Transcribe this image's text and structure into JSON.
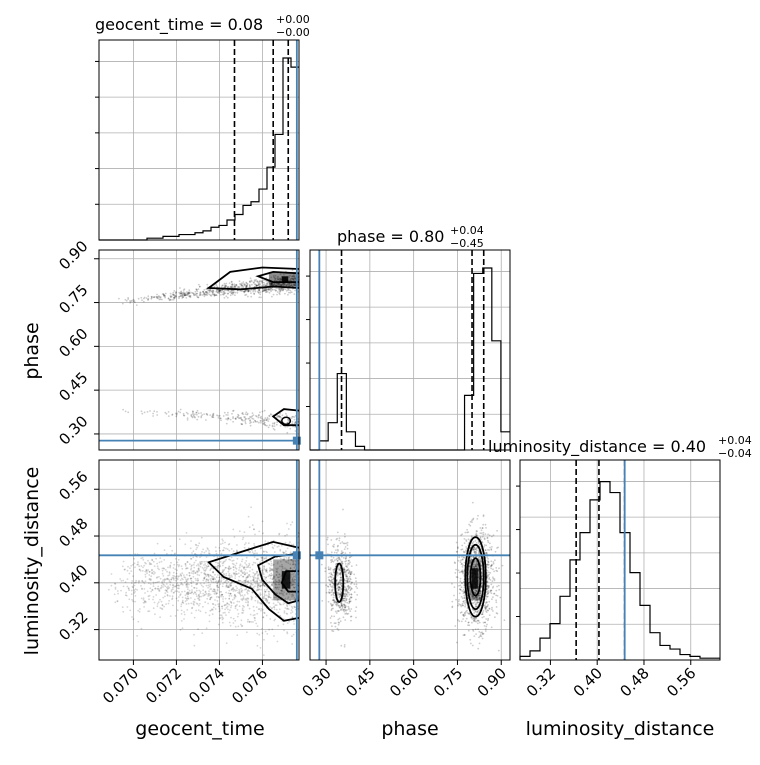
{
  "chart_data": {
    "type": "corner",
    "parameters": [
      "geocent_time",
      "phase",
      "luminosity_distance"
    ],
    "colors": {
      "truth": "#4682b4",
      "ink": "#000000",
      "grid": "#b0b0b0"
    },
    "panel_titles": [
      {
        "name": "geocent_time",
        "value": "0.08",
        "plus": "+0.00",
        "minus": "−0.00"
      },
      {
        "name": "phase",
        "value": "0.80",
        "plus": "+0.04",
        "minus": "−0.45"
      },
      {
        "name": "luminosity_distance",
        "value": "0.40",
        "plus": "+0.04",
        "minus": "−0.04"
      }
    ],
    "axes": {
      "geocent_time": {
        "range": [
          0.0684,
          0.0777
        ],
        "ticks": [
          "0.070",
          "0.072",
          "0.074",
          "0.076"
        ],
        "tick_values": [
          0.07,
          0.072,
          0.074,
          0.076
        ]
      },
      "phase": {
        "range": [
          0.245,
          0.93
        ],
        "ticks": [
          "0.30",
          "0.45",
          "0.60",
          "0.75",
          "0.90"
        ],
        "tick_values": [
          0.3,
          0.45,
          0.6,
          0.75,
          0.9
        ]
      },
      "luminosity_distance": {
        "range": [
          0.268,
          0.61
        ],
        "ticks": [
          "0.32",
          "0.40",
          "0.48",
          "0.56"
        ],
        "tick_values": [
          0.32,
          0.4,
          0.48,
          0.56
        ]
      }
    },
    "truths": {
      "geocent_time": 0.0776,
      "phase": 0.277,
      "luminosity_distance": 0.447
    },
    "quantiles": {
      "geocent_time": [
        0.0747,
        0.0765,
        0.0772
      ],
      "phase": [
        0.353,
        0.8,
        0.84
      ],
      "luminosity_distance": [
        0.364,
        0.403,
        0.447
      ]
    },
    "histograms": {
      "geocent_time": [
        0,
        0,
        0,
        0,
        0,
        0,
        0.01,
        0.01,
        0.02,
        0.02,
        0.03,
        0.03,
        0.04,
        0.05,
        0.07,
        0.08,
        0.11,
        0.14,
        0.19,
        0.21,
        0.28,
        0.4,
        0.58,
        1.0,
        0.95
      ],
      "phase": [
        0,
        0.05,
        0.15,
        0.42,
        0.1,
        0.02,
        0,
        0,
        0,
        0,
        0,
        0,
        0,
        0,
        0,
        0,
        0,
        0.3,
        0.97,
        1.0,
        0.6,
        0.1
      ],
      "luminosity_distance": [
        0.02,
        0.05,
        0.12,
        0.2,
        0.35,
        0.55,
        0.7,
        0.88,
        0.98,
        0.92,
        0.7,
        0.48,
        0.3,
        0.15,
        0.08,
        0.06,
        0.03,
        0.02,
        0.01,
        0.01
      ]
    }
  }
}
